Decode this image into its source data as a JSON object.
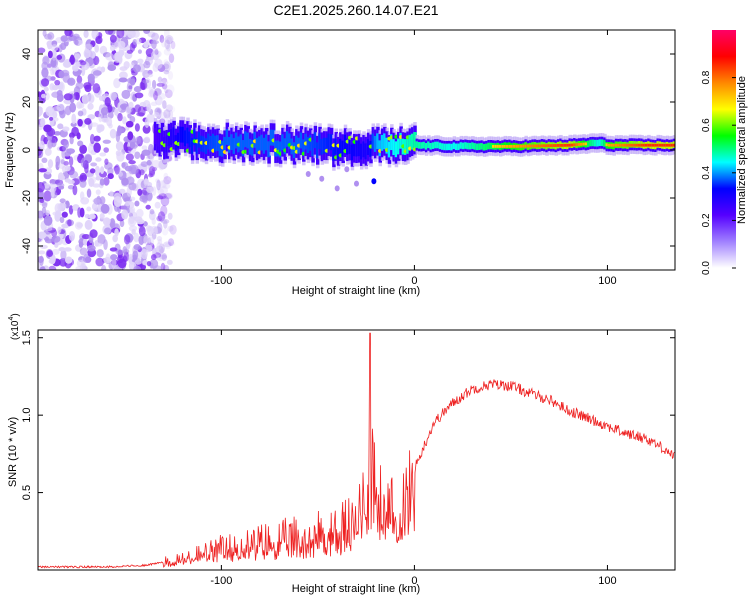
{
  "page_title": "C2E1.2025.260.14.07.E21",
  "colors": {
    "snr_line": "#ee2222",
    "band_low": "#7b2cf0",
    "band_mid": "#00d0e0",
    "band_high": "#ff2222"
  },
  "chart_data": [
    {
      "type": "heatmap",
      "title": "C2E1.2025.260.14.07.E21",
      "xlabel": "Height of straight line (km)",
      "ylabel": "Frequency (Hz)",
      "xlim": [
        -195,
        135
      ],
      "ylim": [
        -50,
        50
      ],
      "x_ticks": [
        -100,
        0,
        100
      ],
      "y_ticks": [
        -40,
        -20,
        0,
        20,
        40
      ],
      "colorbar": {
        "label": "Normalized spectral amplitude",
        "range": [
          0.0,
          1.0
        ],
        "ticks": [
          0.0,
          0.2,
          0.4,
          0.6,
          0.8
        ],
        "colormap": [
          "#ffffff",
          "#a080ff",
          "#5500ff",
          "#0000ff",
          "#00ffff",
          "#00ff00",
          "#ffff00",
          "#ff8800",
          "#ff0000",
          "#ff0066"
        ]
      },
      "band": {
        "x": [
          -135,
          -120,
          -100,
          -80,
          -60,
          -40,
          -25,
          -20,
          -10,
          0,
          20,
          50,
          80,
          95,
          100,
          120,
          135
        ],
        "center_hz": [
          4,
          4,
          3,
          3,
          2,
          1,
          2,
          2,
          2,
          2,
          1.5,
          1.5,
          2,
          3,
          2,
          2,
          2
        ],
        "peak_amplitude": [
          0.3,
          0.45,
          0.5,
          0.5,
          0.5,
          0.45,
          0.4,
          0.55,
          0.6,
          0.65,
          0.6,
          0.75,
          0.85,
          0.6,
          0.75,
          0.85,
          0.85
        ]
      }
    },
    {
      "type": "line",
      "xlabel": "Height of straight line (km)",
      "ylabel": "SNR (10 * v/v)",
      "y_scale_label": "(x10",
      "y_scale_exponent": "4",
      "xlim": [
        -195,
        135
      ],
      "ylim": [
        0,
        1.55
      ],
      "x_ticks": [
        -100,
        0,
        100
      ],
      "y_ticks": [
        0.5,
        1.0,
        1.5
      ],
      "series": [
        {
          "name": "SNR",
          "x": [
            -195,
            -160,
            -140,
            -125,
            -110,
            -100,
            -80,
            -60,
            -40,
            -30,
            -25,
            -22,
            -20,
            -10,
            0,
            10,
            20,
            30,
            40,
            50,
            60,
            70,
            80,
            90,
            100,
            110,
            120,
            130,
            135
          ],
          "y": [
            0.02,
            0.02,
            0.03,
            0.06,
            0.1,
            0.13,
            0.17,
            0.2,
            0.25,
            0.3,
            0.6,
            0.6,
            0.55,
            0.45,
            0.65,
            0.95,
            1.08,
            1.17,
            1.2,
            1.19,
            1.14,
            1.1,
            1.03,
            0.98,
            0.93,
            0.88,
            0.85,
            0.78,
            0.73
          ]
        }
      ],
      "spike": {
        "x": -23,
        "y": 1.53
      }
    }
  ]
}
